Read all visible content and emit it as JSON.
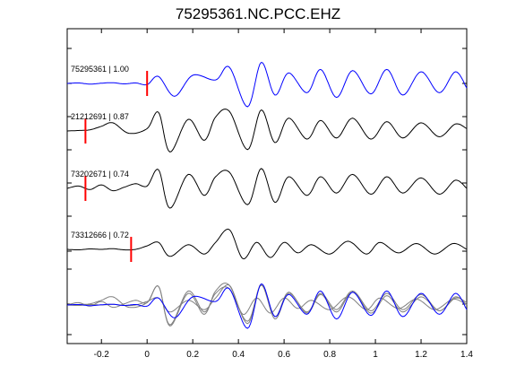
{
  "chart_data": {
    "type": "line",
    "title": "75295361.NC.PCC.EHZ",
    "xlabel": "",
    "ylabel": "",
    "xlim": [
      -0.35,
      1.4
    ],
    "x_ticks": [
      -0.2,
      0,
      0.2,
      0.4,
      0.6,
      0.8,
      1,
      1.2,
      1.4
    ],
    "x_tick_labels": [
      "-0.2",
      "0",
      "0.2",
      "0.4",
      "0.6",
      "0.8",
      "1",
      "1.2",
      "1.4"
    ],
    "grid": false,
    "legend": "none",
    "colors": {
      "reference": "#0000ff",
      "trace": "#000000",
      "overlay": "#808080",
      "pick": "#ff0000"
    },
    "traces": [
      {
        "label": "75295361 | 1.00",
        "pick_time": 0.0,
        "color": "#0000ff",
        "onset": 0.0,
        "waves": [
          [
            1.0,
            0.5,
            0.0
          ],
          [
            0.2,
            0.28,
            0.3
          ]
        ],
        "samples": [
          [
            -0.35,
            0
          ],
          [
            -0.3,
            0.02
          ],
          [
            -0.25,
            -0.03
          ],
          [
            -0.2,
            0.01
          ],
          [
            -0.15,
            0.03
          ],
          [
            -0.1,
            -0.02
          ],
          [
            -0.05,
            0.02
          ],
          [
            0.0,
            -0.05
          ],
          [
            0.05,
            0.3
          ],
          [
            0.12,
            -0.55
          ],
          [
            0.2,
            0.35
          ],
          [
            0.3,
            0.15
          ],
          [
            0.36,
            0.7
          ],
          [
            0.44,
            -1.0
          ],
          [
            0.5,
            0.9
          ],
          [
            0.56,
            -0.5
          ],
          [
            0.62,
            0.45
          ],
          [
            0.7,
            -0.4
          ],
          [
            0.76,
            0.6
          ],
          [
            0.83,
            -0.6
          ],
          [
            0.9,
            0.55
          ],
          [
            0.98,
            -0.45
          ],
          [
            1.05,
            0.6
          ],
          [
            1.12,
            -0.5
          ],
          [
            1.2,
            0.5
          ],
          [
            1.28,
            -0.4
          ],
          [
            1.35,
            0.5
          ],
          [
            1.4,
            -0.2
          ]
        ]
      },
      {
        "label": "21212691 | 0.87",
        "pick_time": -0.27,
        "color": "#000000",
        "samples": [
          [
            -0.35,
            0.0
          ],
          [
            -0.3,
            0.02
          ],
          [
            -0.25,
            0.05
          ],
          [
            -0.2,
            0.2
          ],
          [
            -0.15,
            0.35
          ],
          [
            -0.08,
            -0.1
          ],
          [
            0.0,
            0.1
          ],
          [
            0.05,
            0.8
          ],
          [
            0.1,
            -0.9
          ],
          [
            0.18,
            0.5
          ],
          [
            0.25,
            -0.4
          ],
          [
            0.3,
            0.6
          ],
          [
            0.36,
            0.85
          ],
          [
            0.44,
            -0.8
          ],
          [
            0.5,
            0.9
          ],
          [
            0.56,
            -0.5
          ],
          [
            0.62,
            0.55
          ],
          [
            0.7,
            -0.35
          ],
          [
            0.76,
            0.45
          ],
          [
            0.83,
            -0.3
          ],
          [
            0.9,
            0.55
          ],
          [
            0.98,
            -0.35
          ],
          [
            1.05,
            0.4
          ],
          [
            1.12,
            -0.3
          ],
          [
            1.2,
            0.35
          ],
          [
            1.28,
            -0.25
          ],
          [
            1.35,
            0.3
          ],
          [
            1.4,
            0.1
          ]
        ]
      },
      {
        "label": "73202671 | 0.74",
        "pick_time": -0.27,
        "color": "#000000",
        "samples": [
          [
            -0.35,
            0.0
          ],
          [
            -0.3,
            0.1
          ],
          [
            -0.25,
            -0.05
          ],
          [
            -0.2,
            0.15
          ],
          [
            -0.15,
            -0.1
          ],
          [
            -0.1,
            0.05
          ],
          [
            -0.05,
            0.2
          ],
          [
            0.0,
            0.1
          ],
          [
            0.05,
            0.8
          ],
          [
            0.1,
            -0.85
          ],
          [
            0.18,
            0.6
          ],
          [
            0.25,
            -0.3
          ],
          [
            0.3,
            0.5
          ],
          [
            0.36,
            0.7
          ],
          [
            0.44,
            -0.7
          ],
          [
            0.5,
            0.85
          ],
          [
            0.56,
            -0.6
          ],
          [
            0.62,
            0.5
          ],
          [
            0.7,
            -0.3
          ],
          [
            0.76,
            0.5
          ],
          [
            0.83,
            -0.2
          ],
          [
            0.9,
            0.6
          ],
          [
            0.98,
            -0.25
          ],
          [
            1.05,
            0.5
          ],
          [
            1.12,
            -0.2
          ],
          [
            1.2,
            0.45
          ],
          [
            1.28,
            -0.25
          ],
          [
            1.35,
            0.35
          ],
          [
            1.4,
            0.0
          ]
        ]
      },
      {
        "label": "73312666 | 0.72",
        "pick_time": -0.07,
        "color": "#000000",
        "samples": [
          [
            -0.35,
            0.0
          ],
          [
            -0.3,
            -0.02
          ],
          [
            -0.25,
            0.02
          ],
          [
            -0.2,
            0.0
          ],
          [
            -0.15,
            0.03
          ],
          [
            -0.1,
            -0.02
          ],
          [
            -0.05,
            0.0
          ],
          [
            0.0,
            0.15
          ],
          [
            0.05,
            0.3
          ],
          [
            0.1,
            -0.3
          ],
          [
            0.18,
            0.2
          ],
          [
            0.25,
            -0.2
          ],
          [
            0.3,
            0.3
          ],
          [
            0.36,
            0.85
          ],
          [
            0.42,
            -0.4
          ],
          [
            0.48,
            0.3
          ],
          [
            0.54,
            -0.35
          ],
          [
            0.6,
            0.3
          ],
          [
            0.66,
            -0.15
          ],
          [
            0.72,
            0.2
          ],
          [
            0.8,
            -0.2
          ],
          [
            0.88,
            0.35
          ],
          [
            0.96,
            -0.2
          ],
          [
            1.02,
            0.3
          ],
          [
            1.1,
            -0.15
          ],
          [
            1.18,
            0.25
          ],
          [
            1.26,
            -0.2
          ],
          [
            1.34,
            0.25
          ],
          [
            1.4,
            0.0
          ]
        ]
      }
    ],
    "overlay": {
      "description_note": "",
      "reference_color": "#0000ff",
      "other_color": "#808080"
    }
  }
}
